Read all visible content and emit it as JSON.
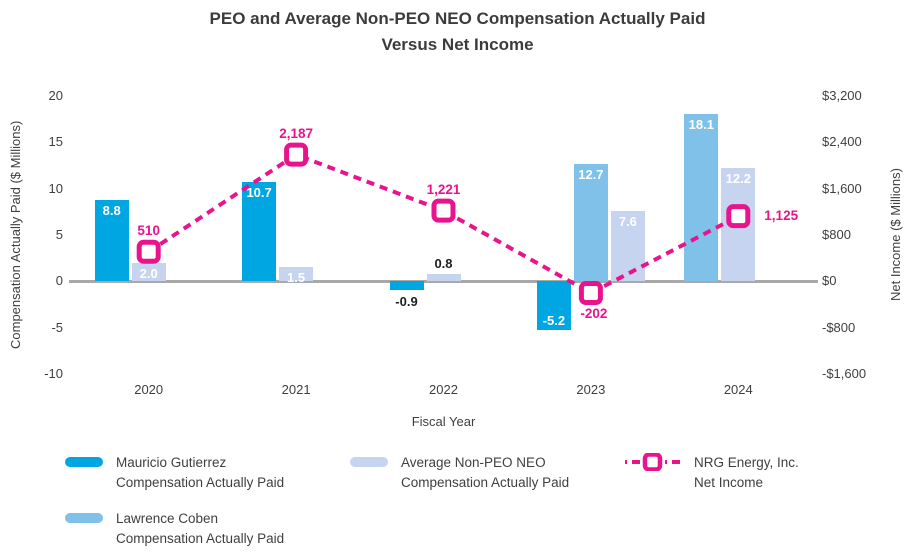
{
  "title": {
    "line1": "PEO and Average Non-PEO NEO Compensation Actually Paid",
    "line2": "Versus Net Income"
  },
  "chart_data": {
    "type": "combo-bar-line",
    "categories": [
      "2020",
      "2021",
      "2022",
      "2023",
      "2024"
    ],
    "xlabel": "Fiscal Year",
    "left_axis": {
      "label": "Compensation Actually Paid ($ Millions)",
      "range": [
        -10,
        20
      ],
      "ticks": [
        "20",
        "15",
        "10",
        "5",
        "0",
        "-5",
        "-10"
      ],
      "tick_values": [
        20,
        15,
        10,
        5,
        0,
        -5,
        -10
      ]
    },
    "right_axis": {
      "label": "Net Income ($ Millions)",
      "range": [
        -1600,
        3200
      ],
      "ticks": [
        "$3,200",
        "$2,400",
        "$1,600",
        "$800",
        "$0",
        "-$800",
        "-$1,600"
      ],
      "tick_values": [
        3200,
        2400,
        1600,
        800,
        0,
        -800,
        -1600
      ]
    },
    "series_colors": {
      "mg": "#00a6e2",
      "lc": "#7fc1e9",
      "avg": "#c6d4f0"
    },
    "bar_groups": [
      {
        "category": "2020",
        "bars": [
          {
            "series": "mg",
            "value": 8.8,
            "label": "8.8",
            "label_pos": "inside-top"
          },
          {
            "series": "avg",
            "value": 2.0,
            "label": "2.0",
            "label_pos": "inside-top"
          }
        ]
      },
      {
        "category": "2021",
        "bars": [
          {
            "series": "mg",
            "value": 10.7,
            "label": "10.7",
            "label_pos": "inside-top"
          },
          {
            "series": "avg",
            "value": 1.5,
            "label": "1.5",
            "label_pos": "inside-top"
          }
        ]
      },
      {
        "category": "2022",
        "bars": [
          {
            "series": "mg",
            "value": -0.9,
            "label": "-0.9",
            "label_pos": "below"
          },
          {
            "series": "avg",
            "value": 0.8,
            "label": "0.8",
            "label_pos": "above"
          }
        ]
      },
      {
        "category": "2023",
        "bars": [
          {
            "series": "mg",
            "value": -5.2,
            "label": "-5.2",
            "label_pos": "inside-bottom"
          },
          {
            "series": "lc",
            "value": 12.7,
            "label": "12.7",
            "label_pos": "inside-top"
          },
          {
            "series": "avg",
            "value": 7.6,
            "label": "7.6",
            "label_pos": "inside-top"
          }
        ]
      },
      {
        "category": "2024",
        "bars": [
          {
            "series": "lc",
            "value": 18.1,
            "label": "18.1",
            "label_pos": "inside-top"
          },
          {
            "series": "avg",
            "value": 12.2,
            "label": "12.2",
            "label_pos": "inside-top"
          }
        ]
      }
    ],
    "line": {
      "name": "NRG Energy, Inc. Net Income",
      "color": "#e8138d",
      "values": [
        510,
        2187,
        1221,
        -202,
        1125
      ],
      "labels": [
        "510",
        "2,187",
        "1,221",
        "-202",
        "1,125"
      ],
      "label_pos": [
        "above",
        "above",
        "above",
        "below",
        "right"
      ]
    }
  },
  "legend": {
    "items": [
      {
        "series": "mg",
        "type": "swatch",
        "color": "#00a6e2",
        "line1": "Mauricio Gutierrez",
        "line2": "Compensation Actually Paid"
      },
      {
        "series": "lc",
        "type": "swatch",
        "color": "#7fc1e9",
        "line1": "Lawrence Coben",
        "line2": "Compensation Actually Paid"
      },
      {
        "series": "avg",
        "type": "swatch",
        "color": "#c6d4f0",
        "line1": "Average Non-PEO NEO",
        "line2": "Compensation Actually Paid"
      },
      {
        "series": "net_income",
        "type": "line",
        "color": "#e8138d",
        "line1": "NRG Energy, Inc.",
        "line2": "Net Income"
      }
    ]
  }
}
